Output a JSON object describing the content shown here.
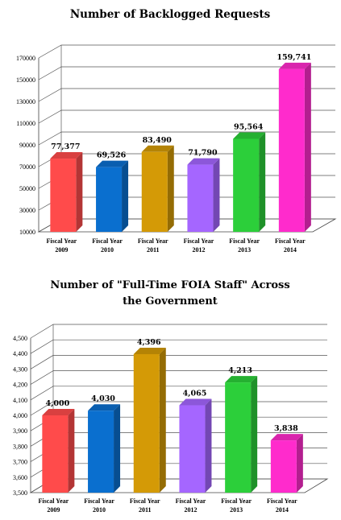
{
  "chart_data": [
    {
      "type": "bar",
      "title": "Number of Backlogged Requests",
      "categories": [
        [
          "Fiscal Year",
          "2009"
        ],
        [
          "Fiscal Year",
          "2010"
        ],
        [
          "Fiscal Year",
          "2011"
        ],
        [
          "Fiscal Year",
          "2012"
        ],
        [
          "Fiscal Year",
          "2013"
        ],
        [
          "Fiscal Year",
          "2014"
        ]
      ],
      "values": [
        77377,
        69526,
        83490,
        71790,
        95564,
        159741
      ],
      "data_labels": [
        "77,377",
        "69,526",
        "83,490",
        "71,790",
        "95,564",
        "159,741"
      ],
      "ylim": [
        10000,
        170000
      ],
      "yticks": [
        10000,
        30000,
        50000,
        70000,
        90000,
        110000,
        130000,
        150000,
        170000
      ],
      "ytick_labels": [
        "10000",
        "30000",
        "50000",
        "70000",
        "90000",
        "110000",
        "130000",
        "150000",
        "170000"
      ],
      "colors": [
        "#ff4b4b",
        "#0a6fcf",
        "#d49a06",
        "#a566ff",
        "#2ccf3a",
        "#ff2bcc"
      ],
      "grid": true
    },
    {
      "type": "bar",
      "title": "Number of \"Full-Time FOIA Staff\" Across the Government",
      "categories": [
        [
          "Fiscal Year",
          "2009"
        ],
        [
          "Fiscal Year",
          "2010"
        ],
        [
          "Fiscal Year",
          "2011"
        ],
        [
          "Fiscal Year",
          "2012"
        ],
        [
          "Fiscal Year",
          "2013"
        ],
        [
          "Fiscal Year",
          "2014"
        ]
      ],
      "values": [
        4000,
        4030,
        4396,
        4065,
        4213,
        3838
      ],
      "data_labels": [
        "4,000",
        "4,030",
        "4,396",
        "4,065",
        "4,213",
        "3,838"
      ],
      "ylim": [
        3500,
        4500
      ],
      "yticks": [
        3500,
        3600,
        3700,
        3800,
        3900,
        4000,
        4100,
        4200,
        4300,
        4400,
        4500
      ],
      "ytick_labels": [
        "3,500",
        "3,600",
        "3,700",
        "3,800",
        "3,900",
        "4,000",
        "4,100",
        "4,200",
        "4,300",
        "4,400",
        "4,500"
      ],
      "colors": [
        "#ff4b4b",
        "#0a6fcf",
        "#d49a06",
        "#a566ff",
        "#2ccf3a",
        "#ff2bcc"
      ],
      "grid": true
    }
  ]
}
